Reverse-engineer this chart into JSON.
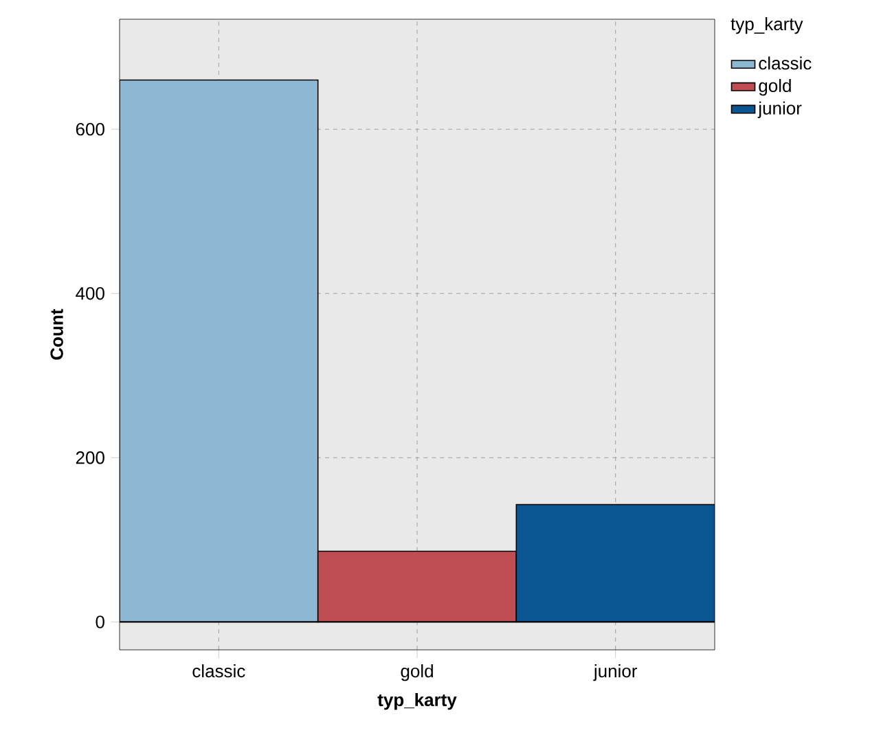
{
  "chart_data": {
    "type": "bar",
    "xlabel": "typ_karty",
    "ylabel": "Count",
    "legend_title": "typ_karty",
    "categories": [
      "classic",
      "gold",
      "junior"
    ],
    "series": [
      {
        "name": "classic",
        "color": "#8db8d2",
        "values": [
          660,
          null,
          null
        ]
      },
      {
        "name": "gold",
        "color": "#c04d53",
        "values": [
          null,
          86,
          null
        ]
      },
      {
        "name": "junior",
        "color": "#0b5690",
        "values": [
          null,
          null,
          143
        ]
      }
    ],
    "ylim": [
      -34,
      734
    ],
    "yticks": [
      0,
      200,
      400,
      600
    ],
    "grid": true,
    "legend": "top right"
  }
}
